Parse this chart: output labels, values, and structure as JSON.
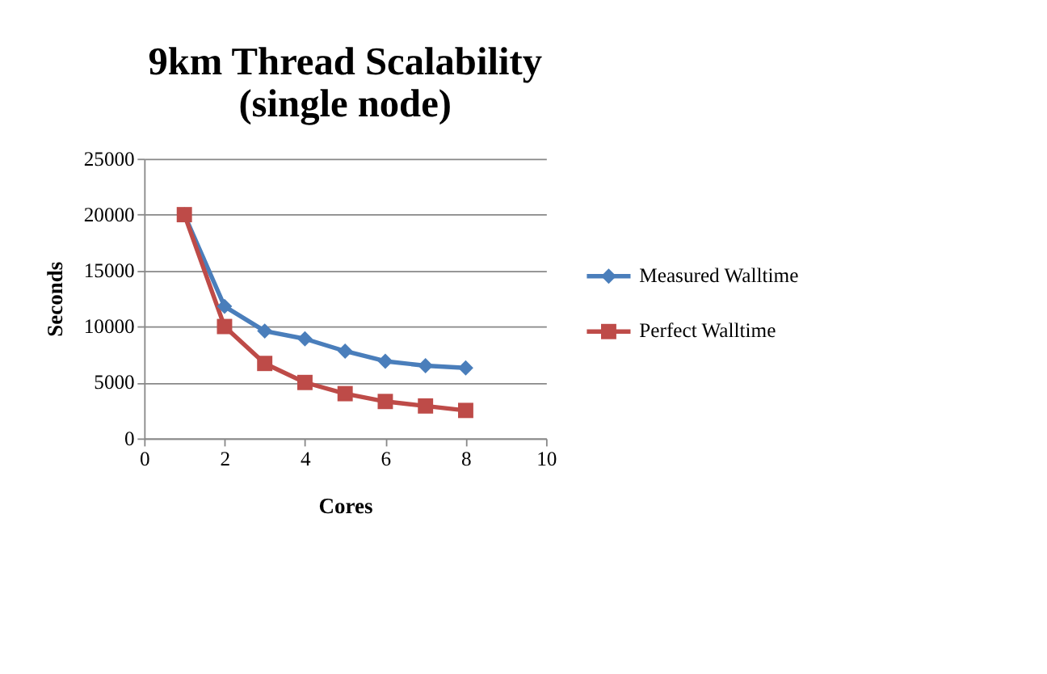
{
  "chart_data": {
    "type": "line",
    "title": "9km Thread Scalability (single node)",
    "xlabel": "Cores",
    "ylabel": "Seconds",
    "x": [
      1,
      2,
      3,
      4,
      5,
      6,
      7,
      8
    ],
    "series": [
      {
        "name": "Measured Walltime",
        "color": "#4a7ebb",
        "marker": "diamond",
        "values": [
          20000,
          11800,
          9600,
          8900,
          7800,
          6900,
          6500,
          6300
        ]
      },
      {
        "name": "Perfect Walltime",
        "color": "#be4b48",
        "marker": "square",
        "values": [
          20000,
          10000,
          6700,
          5000,
          4000,
          3300,
          2900,
          2500
        ]
      }
    ],
    "xlim": [
      0,
      10
    ],
    "xticks": [
      0,
      2,
      4,
      6,
      8,
      10
    ],
    "ylim": [
      0,
      25000
    ],
    "yticks": [
      0,
      5000,
      10000,
      15000,
      20000,
      25000
    ],
    "grid": "y",
    "legend": "right",
    "line_style": "solid"
  }
}
